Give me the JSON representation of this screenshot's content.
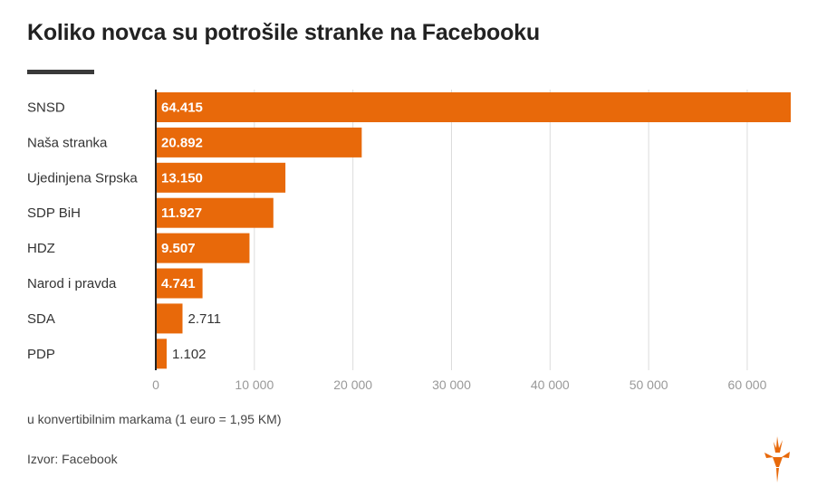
{
  "chart_data": {
    "type": "bar",
    "orientation": "horizontal",
    "title": "Koliko novca su potrošile stranke na Facebooku",
    "categories": [
      "SNSD",
      "Naša stranka",
      "Ujedinjena Srpska",
      "SDP BiH",
      "HDZ",
      "Narod i pravda",
      "SDA",
      "PDP"
    ],
    "values": [
      64415,
      20892,
      13150,
      11927,
      9507,
      4741,
      2711,
      1102
    ],
    "value_labels": [
      "64.415",
      "20.892",
      "13.150",
      "11.927",
      "9.507",
      "4.741",
      "2.711",
      "1.102"
    ],
    "x_ticks": [
      0,
      10000,
      20000,
      30000,
      40000,
      50000,
      60000
    ],
    "x_tick_labels": [
      "0",
      "10 000",
      "20 000",
      "30 000",
      "40 000",
      "50 000",
      "60 000"
    ],
    "xlim": [
      0,
      65000
    ],
    "grid": true,
    "xlabel": "",
    "ylabel": "",
    "bar_color": "#e8690a"
  },
  "note": "u konvertibilnim markama (1 euro = 1,95 KM)",
  "source": "Izvor: Facebook",
  "logo_icon": "rferl-torch-logo",
  "colors": {
    "bar": "#e8690a",
    "grid": "#dcdcdc",
    "axis": "#222222",
    "tick_text": "#999999"
  }
}
